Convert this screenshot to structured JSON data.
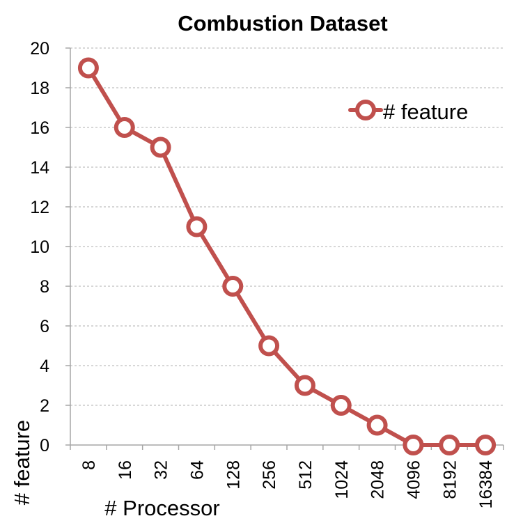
{
  "chart_data": {
    "type": "line",
    "title": "Combustion Dataset",
    "xlabel": "# Processor",
    "ylabel": "# feature",
    "categories": [
      "8",
      "16",
      "32",
      "64",
      "128",
      "256",
      "512",
      "1024",
      "2048",
      "4096",
      "8192",
      "16384"
    ],
    "series": [
      {
        "name": "# feature",
        "values": [
          19,
          16,
          15,
          11,
          8,
          5,
          3,
          2,
          1,
          0,
          0,
          0
        ],
        "color": "#c0504d"
      }
    ],
    "ylim": [
      0,
      20
    ],
    "yticks": [
      0,
      2,
      4,
      6,
      8,
      10,
      12,
      14,
      16,
      18,
      20
    ],
    "grid": true,
    "legend": "top-right",
    "colors": {
      "series": "#c0504d",
      "grid": "#bfbfbf",
      "axis": "#a6a6a6"
    }
  }
}
